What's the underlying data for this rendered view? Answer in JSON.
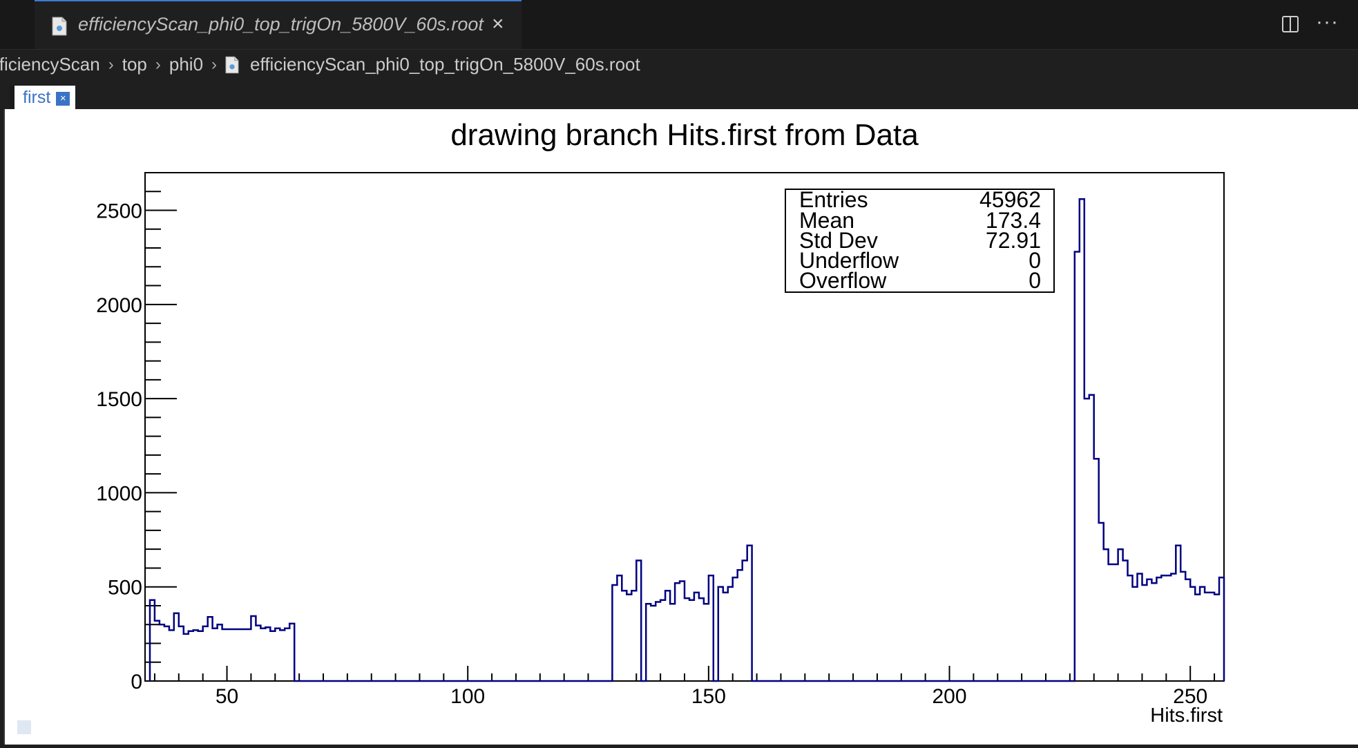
{
  "editor": {
    "tab_title": "efficiencyScan_phi0_top_trigOn_5800V_60s.root",
    "close_icon": "×",
    "more_icon": "···"
  },
  "breadcrumb": [
    "fficiencyScan",
    "top",
    "phi0",
    "efficiencyScan_phi0_top_trigOn_5800V_60s.root"
  ],
  "canvas_tab": {
    "label": "first",
    "close_icon": "×"
  },
  "stats_box": {
    "rows": [
      {
        "label": "Entries",
        "value": "45962"
      },
      {
        "label": "Mean",
        "value": "173.4"
      },
      {
        "label": "Std Dev",
        "value": "72.91"
      },
      {
        "label": "Underflow",
        "value": "0"
      },
      {
        "label": "Overflow",
        "value": "0"
      }
    ]
  },
  "chart_data": {
    "type": "bar",
    "title": "drawing branch Hits.first from Data",
    "xlabel": "Hits.first",
    "ylabel": "",
    "xlim": [
      33,
      257
    ],
    "ylim": [
      0,
      2700
    ],
    "xticks": [
      50,
      100,
      150,
      200,
      250
    ],
    "yticks": [
      0,
      500,
      1000,
      1500,
      2000,
      2500
    ],
    "line_color": "#000080",
    "bin_width": 1,
    "bins": [
      [
        34,
        430
      ],
      [
        35,
        320
      ],
      [
        36,
        300
      ],
      [
        37,
        290
      ],
      [
        38,
        270
      ],
      [
        39,
        360
      ],
      [
        40,
        290
      ],
      [
        41,
        250
      ],
      [
        42,
        265
      ],
      [
        43,
        270
      ],
      [
        44,
        265
      ],
      [
        45,
        290
      ],
      [
        46,
        340
      ],
      [
        47,
        280
      ],
      [
        48,
        300
      ],
      [
        49,
        275
      ],
      [
        50,
        275
      ],
      [
        51,
        275
      ],
      [
        52,
        275
      ],
      [
        53,
        275
      ],
      [
        54,
        275
      ],
      [
        55,
        345
      ],
      [
        56,
        295
      ],
      [
        57,
        280
      ],
      [
        58,
        285
      ],
      [
        59,
        265
      ],
      [
        60,
        280
      ],
      [
        61,
        270
      ],
      [
        62,
        280
      ],
      [
        63,
        305
      ],
      [
        64,
        0
      ],
      [
        65,
        0
      ],
      [
        66,
        0
      ],
      [
        67,
        0
      ],
      [
        68,
        0
      ],
      [
        69,
        0
      ],
      [
        70,
        0
      ],
      [
        71,
        0
      ],
      [
        72,
        0
      ],
      [
        73,
        0
      ],
      [
        74,
        0
      ],
      [
        75,
        0
      ],
      [
        76,
        0
      ],
      [
        77,
        0
      ],
      [
        78,
        0
      ],
      [
        79,
        0
      ],
      [
        80,
        0
      ],
      [
        81,
        0
      ],
      [
        82,
        0
      ],
      [
        83,
        0
      ],
      [
        84,
        0
      ],
      [
        85,
        0
      ],
      [
        86,
        0
      ],
      [
        87,
        0
      ],
      [
        88,
        0
      ],
      [
        89,
        0
      ],
      [
        90,
        0
      ],
      [
        91,
        0
      ],
      [
        92,
        0
      ],
      [
        93,
        0
      ],
      [
        94,
        0
      ],
      [
        95,
        0
      ],
      [
        96,
        0
      ],
      [
        97,
        0
      ],
      [
        98,
        0
      ],
      [
        99,
        0
      ],
      [
        100,
        0
      ],
      [
        101,
        0
      ],
      [
        102,
        0
      ],
      [
        103,
        0
      ],
      [
        104,
        0
      ],
      [
        105,
        0
      ],
      [
        106,
        0
      ],
      [
        107,
        0
      ],
      [
        108,
        0
      ],
      [
        109,
        0
      ],
      [
        110,
        0
      ],
      [
        111,
        0
      ],
      [
        112,
        0
      ],
      [
        113,
        0
      ],
      [
        114,
        0
      ],
      [
        115,
        0
      ],
      [
        116,
        0
      ],
      [
        117,
        0
      ],
      [
        118,
        0
      ],
      [
        119,
        0
      ],
      [
        120,
        0
      ],
      [
        121,
        0
      ],
      [
        122,
        0
      ],
      [
        123,
        0
      ],
      [
        124,
        0
      ],
      [
        125,
        0
      ],
      [
        126,
        0
      ],
      [
        127,
        0
      ],
      [
        128,
        0
      ],
      [
        129,
        0
      ],
      [
        130,
        510
      ],
      [
        131,
        560
      ],
      [
        132,
        480
      ],
      [
        133,
        460
      ],
      [
        134,
        480
      ],
      [
        135,
        640
      ],
      [
        136,
        0
      ],
      [
        137,
        410
      ],
      [
        138,
        400
      ],
      [
        139,
        420
      ],
      [
        140,
        430
      ],
      [
        141,
        480
      ],
      [
        142,
        410
      ],
      [
        143,
        520
      ],
      [
        144,
        530
      ],
      [
        145,
        440
      ],
      [
        146,
        430
      ],
      [
        147,
        470
      ],
      [
        148,
        440
      ],
      [
        149,
        410
      ],
      [
        150,
        560
      ],
      [
        151,
        0
      ],
      [
        152,
        500
      ],
      [
        153,
        470
      ],
      [
        154,
        500
      ],
      [
        155,
        550
      ],
      [
        156,
        590
      ],
      [
        157,
        640
      ],
      [
        158,
        720
      ],
      [
        159,
        0
      ],
      [
        160,
        0
      ],
      [
        161,
        0
      ],
      [
        162,
        0
      ],
      [
        163,
        0
      ],
      [
        164,
        0
      ],
      [
        165,
        0
      ],
      [
        166,
        0
      ],
      [
        167,
        0
      ],
      [
        168,
        0
      ],
      [
        169,
        0
      ],
      [
        170,
        0
      ],
      [
        171,
        0
      ],
      [
        172,
        0
      ],
      [
        173,
        0
      ],
      [
        174,
        0
      ],
      [
        175,
        0
      ],
      [
        176,
        0
      ],
      [
        177,
        0
      ],
      [
        178,
        0
      ],
      [
        179,
        0
      ],
      [
        180,
        0
      ],
      [
        181,
        0
      ],
      [
        182,
        0
      ],
      [
        183,
        0
      ],
      [
        184,
        0
      ],
      [
        185,
        0
      ],
      [
        186,
        0
      ],
      [
        187,
        0
      ],
      [
        188,
        0
      ],
      [
        189,
        0
      ],
      [
        190,
        0
      ],
      [
        191,
        0
      ],
      [
        192,
        0
      ],
      [
        193,
        0
      ],
      [
        194,
        0
      ],
      [
        195,
        0
      ],
      [
        196,
        0
      ],
      [
        197,
        0
      ],
      [
        198,
        0
      ],
      [
        199,
        0
      ],
      [
        200,
        0
      ],
      [
        201,
        0
      ],
      [
        202,
        0
      ],
      [
        203,
        0
      ],
      [
        204,
        0
      ],
      [
        205,
        0
      ],
      [
        206,
        0
      ],
      [
        207,
        0
      ],
      [
        208,
        0
      ],
      [
        209,
        0
      ],
      [
        210,
        0
      ],
      [
        211,
        0
      ],
      [
        212,
        0
      ],
      [
        213,
        0
      ],
      [
        214,
        0
      ],
      [
        215,
        0
      ],
      [
        216,
        0
      ],
      [
        217,
        0
      ],
      [
        218,
        0
      ],
      [
        219,
        0
      ],
      [
        220,
        0
      ],
      [
        221,
        0
      ],
      [
        222,
        0
      ],
      [
        223,
        0
      ],
      [
        224,
        0
      ],
      [
        225,
        0
      ],
      [
        226,
        2280
      ],
      [
        227,
        2560
      ],
      [
        228,
        1500
      ],
      [
        229,
        1520
      ],
      [
        230,
        1180
      ],
      [
        231,
        840
      ],
      [
        232,
        700
      ],
      [
        233,
        620
      ],
      [
        234,
        620
      ],
      [
        235,
        700
      ],
      [
        236,
        640
      ],
      [
        237,
        560
      ],
      [
        238,
        500
      ],
      [
        239,
        570
      ],
      [
        240,
        510
      ],
      [
        241,
        540
      ],
      [
        242,
        520
      ],
      [
        243,
        550
      ],
      [
        244,
        560
      ],
      [
        245,
        560
      ],
      [
        246,
        570
      ],
      [
        247,
        720
      ],
      [
        248,
        580
      ],
      [
        249,
        540
      ],
      [
        250,
        500
      ],
      [
        251,
        460
      ],
      [
        252,
        500
      ],
      [
        253,
        470
      ],
      [
        254,
        470
      ],
      [
        255,
        460
      ],
      [
        256,
        550
      ]
    ]
  }
}
